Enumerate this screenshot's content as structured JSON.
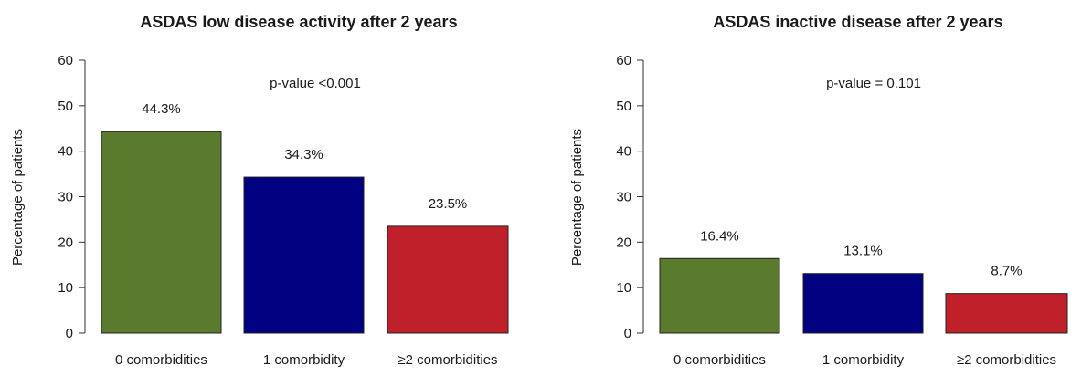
{
  "chart_data": [
    {
      "type": "bar",
      "title": "ASDAS low disease activity after 2 years",
      "xlabel": "",
      "ylabel": "Percentage of patients",
      "ylim": [
        0,
        60
      ],
      "yticks": [
        0,
        10,
        20,
        30,
        40,
        50,
        60
      ],
      "grid": false,
      "categories": [
        "0 comorbidities",
        "1 comorbidity",
        "≥2 comorbidities"
      ],
      "values": [
        44.3,
        34.3,
        23.5
      ],
      "data_labels": [
        "44.3%",
        "34.3%",
        "23.5%"
      ],
      "colors": [
        "#5a7a2e",
        "#000080",
        "#c0202a"
      ],
      "annotation": "p-value <0.001"
    },
    {
      "type": "bar",
      "title": "ASDAS inactive disease after 2 years",
      "xlabel": "",
      "ylabel": "Percentage of patients",
      "ylim": [
        0,
        60
      ],
      "yticks": [
        0,
        10,
        20,
        30,
        40,
        50,
        60
      ],
      "grid": false,
      "categories": [
        "0 comorbidities",
        "1 comorbidity",
        "≥2 comorbidities"
      ],
      "values": [
        16.4,
        13.1,
        8.7
      ],
      "data_labels": [
        "16.4%",
        "13.1%",
        "8.7%"
      ],
      "colors": [
        "#5a7a2e",
        "#000080",
        "#c0202a"
      ],
      "annotation": "p-value = 0.101"
    }
  ]
}
